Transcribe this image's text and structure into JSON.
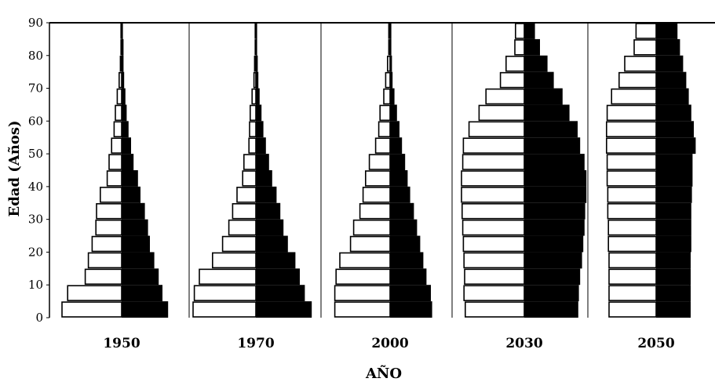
{
  "chart_data": {
    "type": "bar",
    "subtype": "population-pyramid",
    "title": "",
    "xlabel": "AÑO",
    "ylabel": "Edad (Años)",
    "ylim": [
      0,
      90
    ],
    "yticks": [
      "0",
      "10",
      "20",
      "30",
      "40",
      "50",
      "60",
      "70",
      "80",
      "90"
    ],
    "age_groups": [
      "0-4",
      "5-9",
      "10-14",
      "15-19",
      "20-24",
      "25-29",
      "30-34",
      "35-39",
      "40-44",
      "45-49",
      "50-54",
      "55-59",
      "60-64",
      "65-69",
      "70-74",
      "75-79",
      "80-84",
      "85-89"
    ],
    "legend": "none",
    "grid": false,
    "colors": {
      "left_bars": "#ffffff",
      "right_bars": "#000000",
      "divider": "#000000"
    },
    "panels": [
      {
        "year": "1950",
        "left": [
          9.5,
          8.6,
          5.8,
          5.3,
          4.7,
          4.1,
          4.0,
          3.4,
          2.3,
          2.0,
          1.6,
          1.2,
          1.0,
          0.7,
          0.4,
          0.2,
          0.1,
          0.1
        ],
        "right": [
          7.4,
          6.5,
          5.9,
          5.2,
          4.5,
          4.2,
          3.7,
          3.0,
          2.6,
          1.9,
          1.5,
          1.1,
          0.8,
          0.6,
          0.4,
          0.3,
          0.3,
          0.2
        ]
      },
      {
        "year": "1970",
        "left": [
          10.0,
          9.8,
          9.0,
          6.9,
          5.3,
          4.3,
          3.7,
          3.0,
          2.1,
          1.9,
          1.1,
          1.0,
          0.9,
          0.6,
          0.3,
          0.2,
          0.1,
          0.1
        ],
        "right": [
          8.9,
          7.8,
          7.0,
          6.3,
          5.1,
          4.4,
          3.9,
          3.3,
          2.6,
          2.1,
          1.6,
          1.2,
          0.9,
          0.6,
          0.4,
          0.3,
          0.2,
          0.2
        ]
      },
      {
        "year": "2000",
        "left": [
          8.8,
          8.8,
          8.6,
          8.0,
          6.3,
          5.8,
          4.8,
          4.3,
          3.9,
          3.3,
          2.3,
          1.8,
          1.6,
          1.0,
          0.7,
          0.4,
          0.2,
          0.2
        ],
        "right": [
          6.7,
          6.5,
          5.8,
          5.3,
          4.8,
          4.3,
          3.8,
          3.2,
          2.8,
          2.4,
          1.9,
          1.5,
          1.1,
          0.7,
          0.4,
          0.3,
          0.2,
          0.2
        ]
      },
      {
        "year": "2030",
        "left": [
          9.4,
          9.6,
          9.5,
          9.6,
          9.7,
          9.8,
          9.9,
          10.0,
          10.0,
          9.8,
          9.7,
          8.8,
          7.2,
          6.1,
          3.8,
          2.9,
          1.5,
          1.4
        ],
        "right": [
          8.6,
          8.7,
          8.9,
          9.2,
          9.4,
          9.6,
          9.7,
          9.9,
          9.9,
          9.6,
          8.9,
          8.5,
          7.2,
          6.1,
          4.7,
          3.7,
          2.5,
          1.7
        ]
      },
      {
        "year": "2050",
        "left": [
          7.5,
          7.5,
          7.5,
          7.5,
          7.6,
          7.6,
          7.7,
          7.7,
          7.8,
          7.8,
          7.9,
          7.9,
          7.8,
          7.1,
          5.9,
          5.0,
          3.5,
          3.2
        ],
        "right": [
          5.5,
          5.5,
          5.5,
          5.5,
          5.6,
          5.6,
          5.6,
          5.7,
          5.8,
          5.8,
          6.3,
          6.0,
          5.6,
          5.2,
          4.8,
          4.3,
          3.8,
          3.4
        ]
      }
    ]
  }
}
